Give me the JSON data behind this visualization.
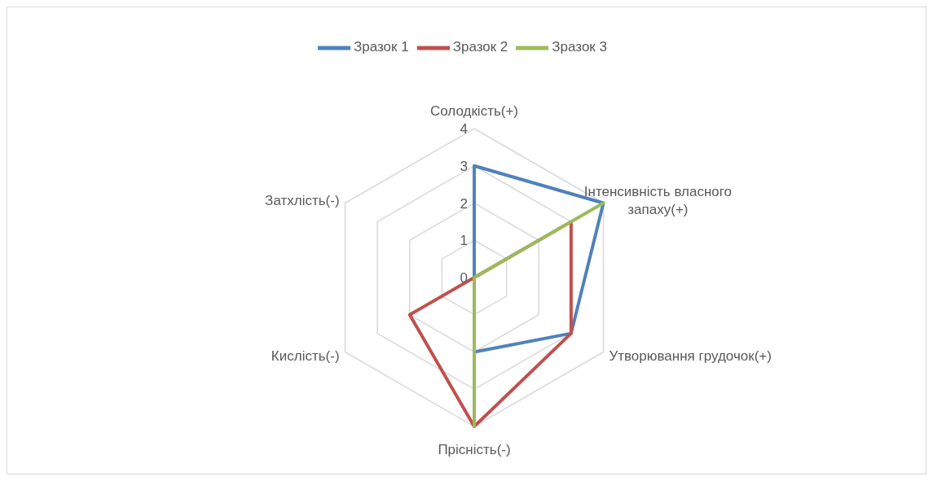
{
  "chart_data": {
    "type": "radar",
    "categories": [
      "Солодкість(+)",
      "Інтенсивність власного запаху(+)",
      "Утворювання грудочок(+)",
      "Прісність(-)",
      "Кислість(-)",
      "Затхлість(-)"
    ],
    "series": [
      {
        "name": "Зразок 1",
        "color": "#4f81bd",
        "values": [
          3,
          4,
          3,
          2,
          0,
          0
        ]
      },
      {
        "name": "Зразок 2",
        "color": "#c0504d",
        "values": [
          0,
          3,
          3,
          4,
          2,
          0
        ]
      },
      {
        "name": "Зразок 3",
        "color": "#9bbb59",
        "values": [
          0,
          4,
          0,
          4,
          0,
          0
        ]
      }
    ],
    "ylim": [
      0,
      4
    ],
    "yticks": [
      0,
      1,
      2,
      3,
      4
    ],
    "grid": true,
    "legend": "top",
    "marker": "none",
    "line_style": "solid"
  }
}
